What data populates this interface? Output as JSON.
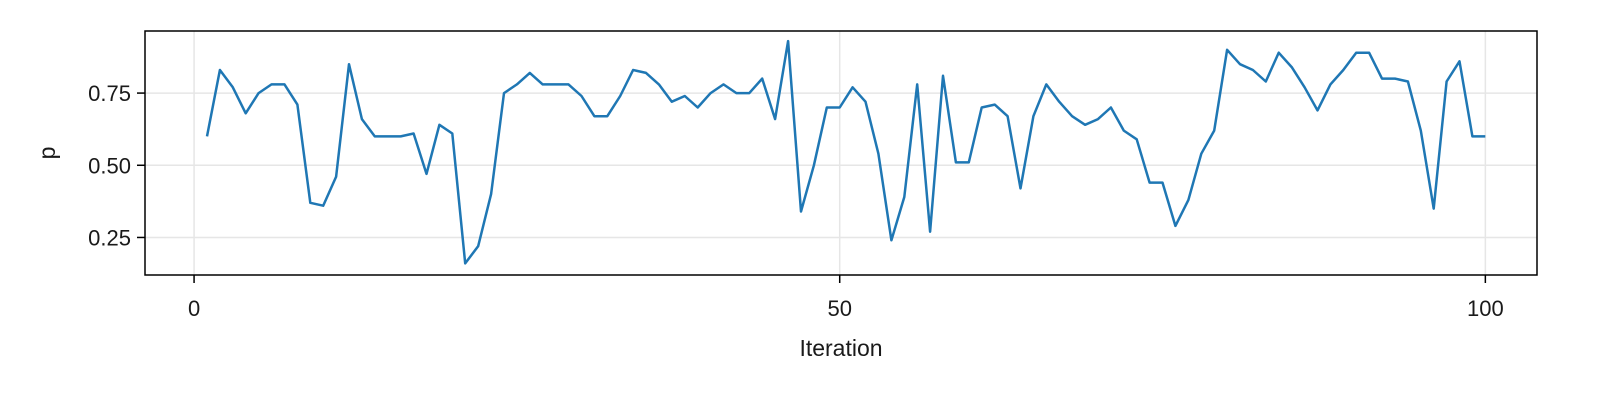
{
  "chart_data": {
    "type": "line",
    "xlabel": "Iteration",
    "ylabel": "p",
    "xlim": [
      -3.8,
      104
    ],
    "ylim": [
      0.12,
      0.965
    ],
    "xticks": [
      0,
      50,
      100
    ],
    "xtick_labels": [
      "0",
      "50",
      "100"
    ],
    "yticks": [
      0.25,
      0.5,
      0.75
    ],
    "ytick_labels": [
      "0.25",
      "0.50",
      "0.75"
    ],
    "grid": true,
    "legend": "none",
    "series": [
      {
        "color": "#1f77b4",
        "x": [
          1,
          2,
          3,
          4,
          5,
          6,
          7,
          8,
          9,
          10,
          11,
          12,
          13,
          14,
          15,
          16,
          17,
          18,
          19,
          20,
          21,
          22,
          23,
          24,
          25,
          26,
          27,
          28,
          29,
          30,
          31,
          32,
          33,
          34,
          35,
          36,
          37,
          38,
          39,
          40,
          41,
          42,
          43,
          44,
          45,
          46,
          47,
          48,
          49,
          50,
          51,
          52,
          53,
          54,
          55,
          56,
          57,
          58,
          59,
          60,
          61,
          62,
          63,
          64,
          65,
          66,
          67,
          68,
          69,
          70,
          71,
          72,
          73,
          74,
          75,
          76,
          77,
          78,
          79,
          80,
          81,
          82,
          83,
          84,
          85,
          86,
          87,
          88,
          89,
          90,
          91,
          92,
          93,
          94,
          95,
          96,
          97,
          98,
          99,
          100
        ],
        "y": [
          0.6,
          0.83,
          0.77,
          0.68,
          0.75,
          0.78,
          0.78,
          0.71,
          0.37,
          0.36,
          0.46,
          0.85,
          0.66,
          0.6,
          0.6,
          0.6,
          0.61,
          0.47,
          0.64,
          0.61,
          0.16,
          0.22,
          0.4,
          0.75,
          0.78,
          0.82,
          0.78,
          0.78,
          0.78,
          0.74,
          0.67,
          0.67,
          0.74,
          0.83,
          0.82,
          0.78,
          0.72,
          0.74,
          0.7,
          0.75,
          0.78,
          0.75,
          0.75,
          0.8,
          0.66,
          0.93,
          0.34,
          0.5,
          0.7,
          0.7,
          0.77,
          0.72,
          0.54,
          0.24,
          0.39,
          0.78,
          0.27,
          0.81,
          0.51,
          0.51,
          0.7,
          0.71,
          0.67,
          0.42,
          0.67,
          0.78,
          0.72,
          0.67,
          0.64,
          0.66,
          0.7,
          0.62,
          0.59,
          0.44,
          0.44,
          0.29,
          0.38,
          0.54,
          0.62,
          0.9,
          0.85,
          0.83,
          0.79,
          0.89,
          0.84,
          0.77,
          0.69,
          0.78,
          0.83,
          0.89,
          0.89,
          0.8,
          0.8,
          0.79,
          0.62,
          0.35,
          0.79,
          0.86,
          0.6,
          0.6
        ]
      }
    ]
  }
}
